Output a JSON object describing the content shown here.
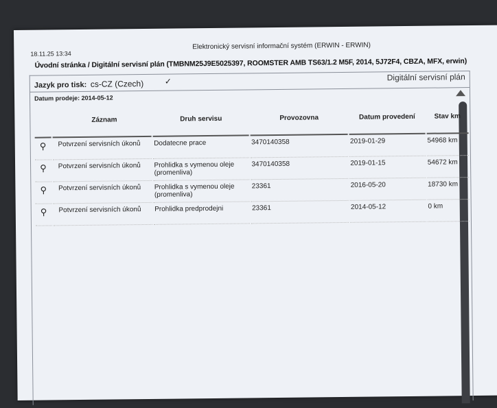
{
  "header": {
    "timestamp": "18.11.25 13:34",
    "system_title": "Elektronický servisní informační systém (ERWIN - ERWIN)",
    "breadcrumb_home": "Úvodní stránka",
    "breadcrumb_sep": " / ",
    "breadcrumb_current": "Digitální servisní plán (TMBNM25J9E5025397, ROOMSTER AMB TS63/1.2 M5F, 2014, 5J72F4, CBZA, MFX, erwin)"
  },
  "panel": {
    "language_label": "Jazyk pro tisk:",
    "language_value": "cs-CZ (Czech)",
    "panel_title": "Digitální servisní plán",
    "sale_date": "Datum prodeje: 2014-05-12"
  },
  "table": {
    "columns": [
      "Záznam",
      "Druh servisu",
      "Provozovna",
      "Datum provedení",
      "Stav km"
    ],
    "rows": [
      {
        "record": "Potvrzení servisních úkonů",
        "type": "Dodatecne prace",
        "workshop": "3470140358",
        "date": "2019-01-29",
        "km": "54968 km"
      },
      {
        "record": "Potvrzení servisních úkonů",
        "type": "Prohlidka s vymenou oleje (promenliva)",
        "workshop": "3470140358",
        "date": "2019-01-15",
        "km": "54672 km"
      },
      {
        "record": "Potvrzení servisních úkonů",
        "type": "Prohlidka s vymenou oleje (promenliva)",
        "workshop": "23361",
        "date": "2016-05-20",
        "km": "18730 km"
      },
      {
        "record": "Potvrzení servisních úkonů",
        "type": "Prohlidka predprodejni",
        "workshop": "23361",
        "date": "2014-05-12",
        "km": "0 km"
      }
    ]
  },
  "icons": {
    "row_detail": "magnifier-icon",
    "language_dropdown": "chevron-down-icon",
    "scroll_up": "triangle-up-icon"
  }
}
